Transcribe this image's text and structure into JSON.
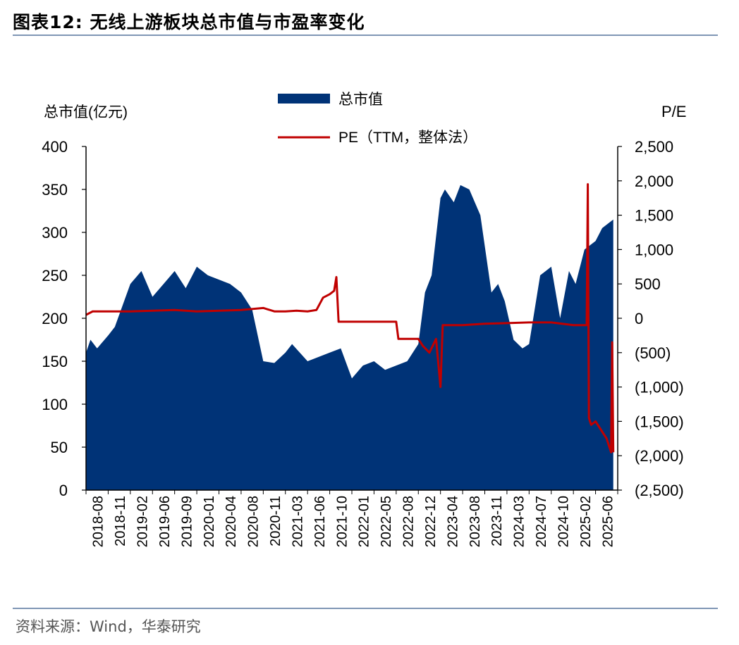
{
  "title": "图表12:  无线上游板块总市值与市盈率变化",
  "source": "资料来源：Wind，华泰研究",
  "colors": {
    "bars": "#003377",
    "pe_line": "#c00000",
    "rule": "#7f96b5"
  },
  "chart_data": {
    "type": "area",
    "left_axis": {
      "label": "总市值(亿元)",
      "range": [
        0,
        400
      ],
      "ticks": [
        "0",
        "50",
        "100",
        "150",
        "200",
        "250",
        "300",
        "350",
        "400"
      ]
    },
    "right_axis": {
      "label": "P/E",
      "range": [
        -2500,
        2500
      ],
      "ticks": [
        "(2,500)",
        "(2,000)",
        "(1,500)",
        "(1,000)",
        "(500)",
        "0",
        "500",
        "1,000",
        "1,500",
        "2,000",
        "2,500"
      ]
    },
    "x_labels": [
      "2018-08",
      "2018-11",
      "2019-02",
      "2019-06",
      "2019-09",
      "2020-01",
      "2020-04",
      "2020-08",
      "2020-11",
      "2021-03",
      "2021-06",
      "2021-10",
      "2022-01",
      "2022-05",
      "2022-08",
      "2022-12",
      "2023-04",
      "2023-08",
      "2023-11",
      "2024-03",
      "2024-07",
      "2024-10",
      "2025-02",
      "2025-06"
    ],
    "legend": [
      {
        "name": "总市值",
        "kind": "bar"
      },
      {
        "name": "PE（TTM，整体法）",
        "kind": "line"
      }
    ],
    "series": [
      {
        "name": "总市值",
        "kind": "area",
        "x": [
          0,
          0.2,
          0.5,
          1,
          1.3,
          2,
          2.5,
          3,
          3.5,
          4,
          4.5,
          5,
          5.5,
          6,
          6.5,
          7,
          7.5,
          8,
          8.5,
          9,
          9.3,
          10,
          10.5,
          11,
          11.5,
          12,
          12.5,
          13,
          13.5,
          14,
          14.5,
          15,
          15.3,
          15.6,
          16,
          16.2,
          16.6,
          16.9,
          17.3,
          17.8,
          18.3,
          18.6,
          18.9,
          19.3,
          19.7,
          20,
          20.5,
          21,
          21.4,
          21.8,
          22.1,
          22.5,
          23,
          23.3,
          23.8
        ],
        "values": [
          160,
          175,
          165,
          180,
          190,
          240,
          255,
          225,
          240,
          255,
          235,
          260,
          250,
          245,
          240,
          230,
          210,
          150,
          148,
          160,
          170,
          150,
          155,
          160,
          165,
          130,
          145,
          150,
          140,
          145,
          150,
          170,
          230,
          250,
          340,
          350,
          335,
          355,
          350,
          320,
          230,
          240,
          220,
          175,
          165,
          170,
          250,
          260,
          200,
          255,
          240,
          280,
          290,
          305,
          315
        ]
      },
      {
        "name": "PE（TTM，整体法）",
        "kind": "line",
        "x": [
          0,
          0.3,
          0.6,
          1,
          2,
          3,
          4,
          5,
          6,
          7,
          8,
          8.5,
          9,
          9.5,
          10,
          10.4,
          10.7,
          11,
          11.2,
          11.3,
          11.4,
          12,
          13,
          14,
          14.1,
          15,
          15.2,
          15.5,
          15.8,
          16,
          16.1,
          16.2,
          16.4,
          17,
          18,
          19,
          20,
          21,
          22,
          22.6,
          22.65,
          22.7,
          22.8,
          23,
          23.3,
          23.5,
          23.7,
          23.75,
          23.8
        ],
        "values": [
          50,
          100,
          100,
          100,
          100,
          110,
          120,
          100,
          110,
          120,
          150,
          100,
          100,
          110,
          100,
          120,
          300,
          350,
          400,
          600,
          -50,
          -50,
          -50,
          -50,
          -300,
          -300,
          -400,
          -500,
          -300,
          -1000,
          -100,
          -100,
          -100,
          -100,
          -80,
          -70,
          -60,
          -60,
          -100,
          -100,
          1950,
          -1450,
          -1550,
          -1500,
          -1650,
          -1750,
          -1950,
          -350,
          -1950
        ]
      }
    ]
  }
}
